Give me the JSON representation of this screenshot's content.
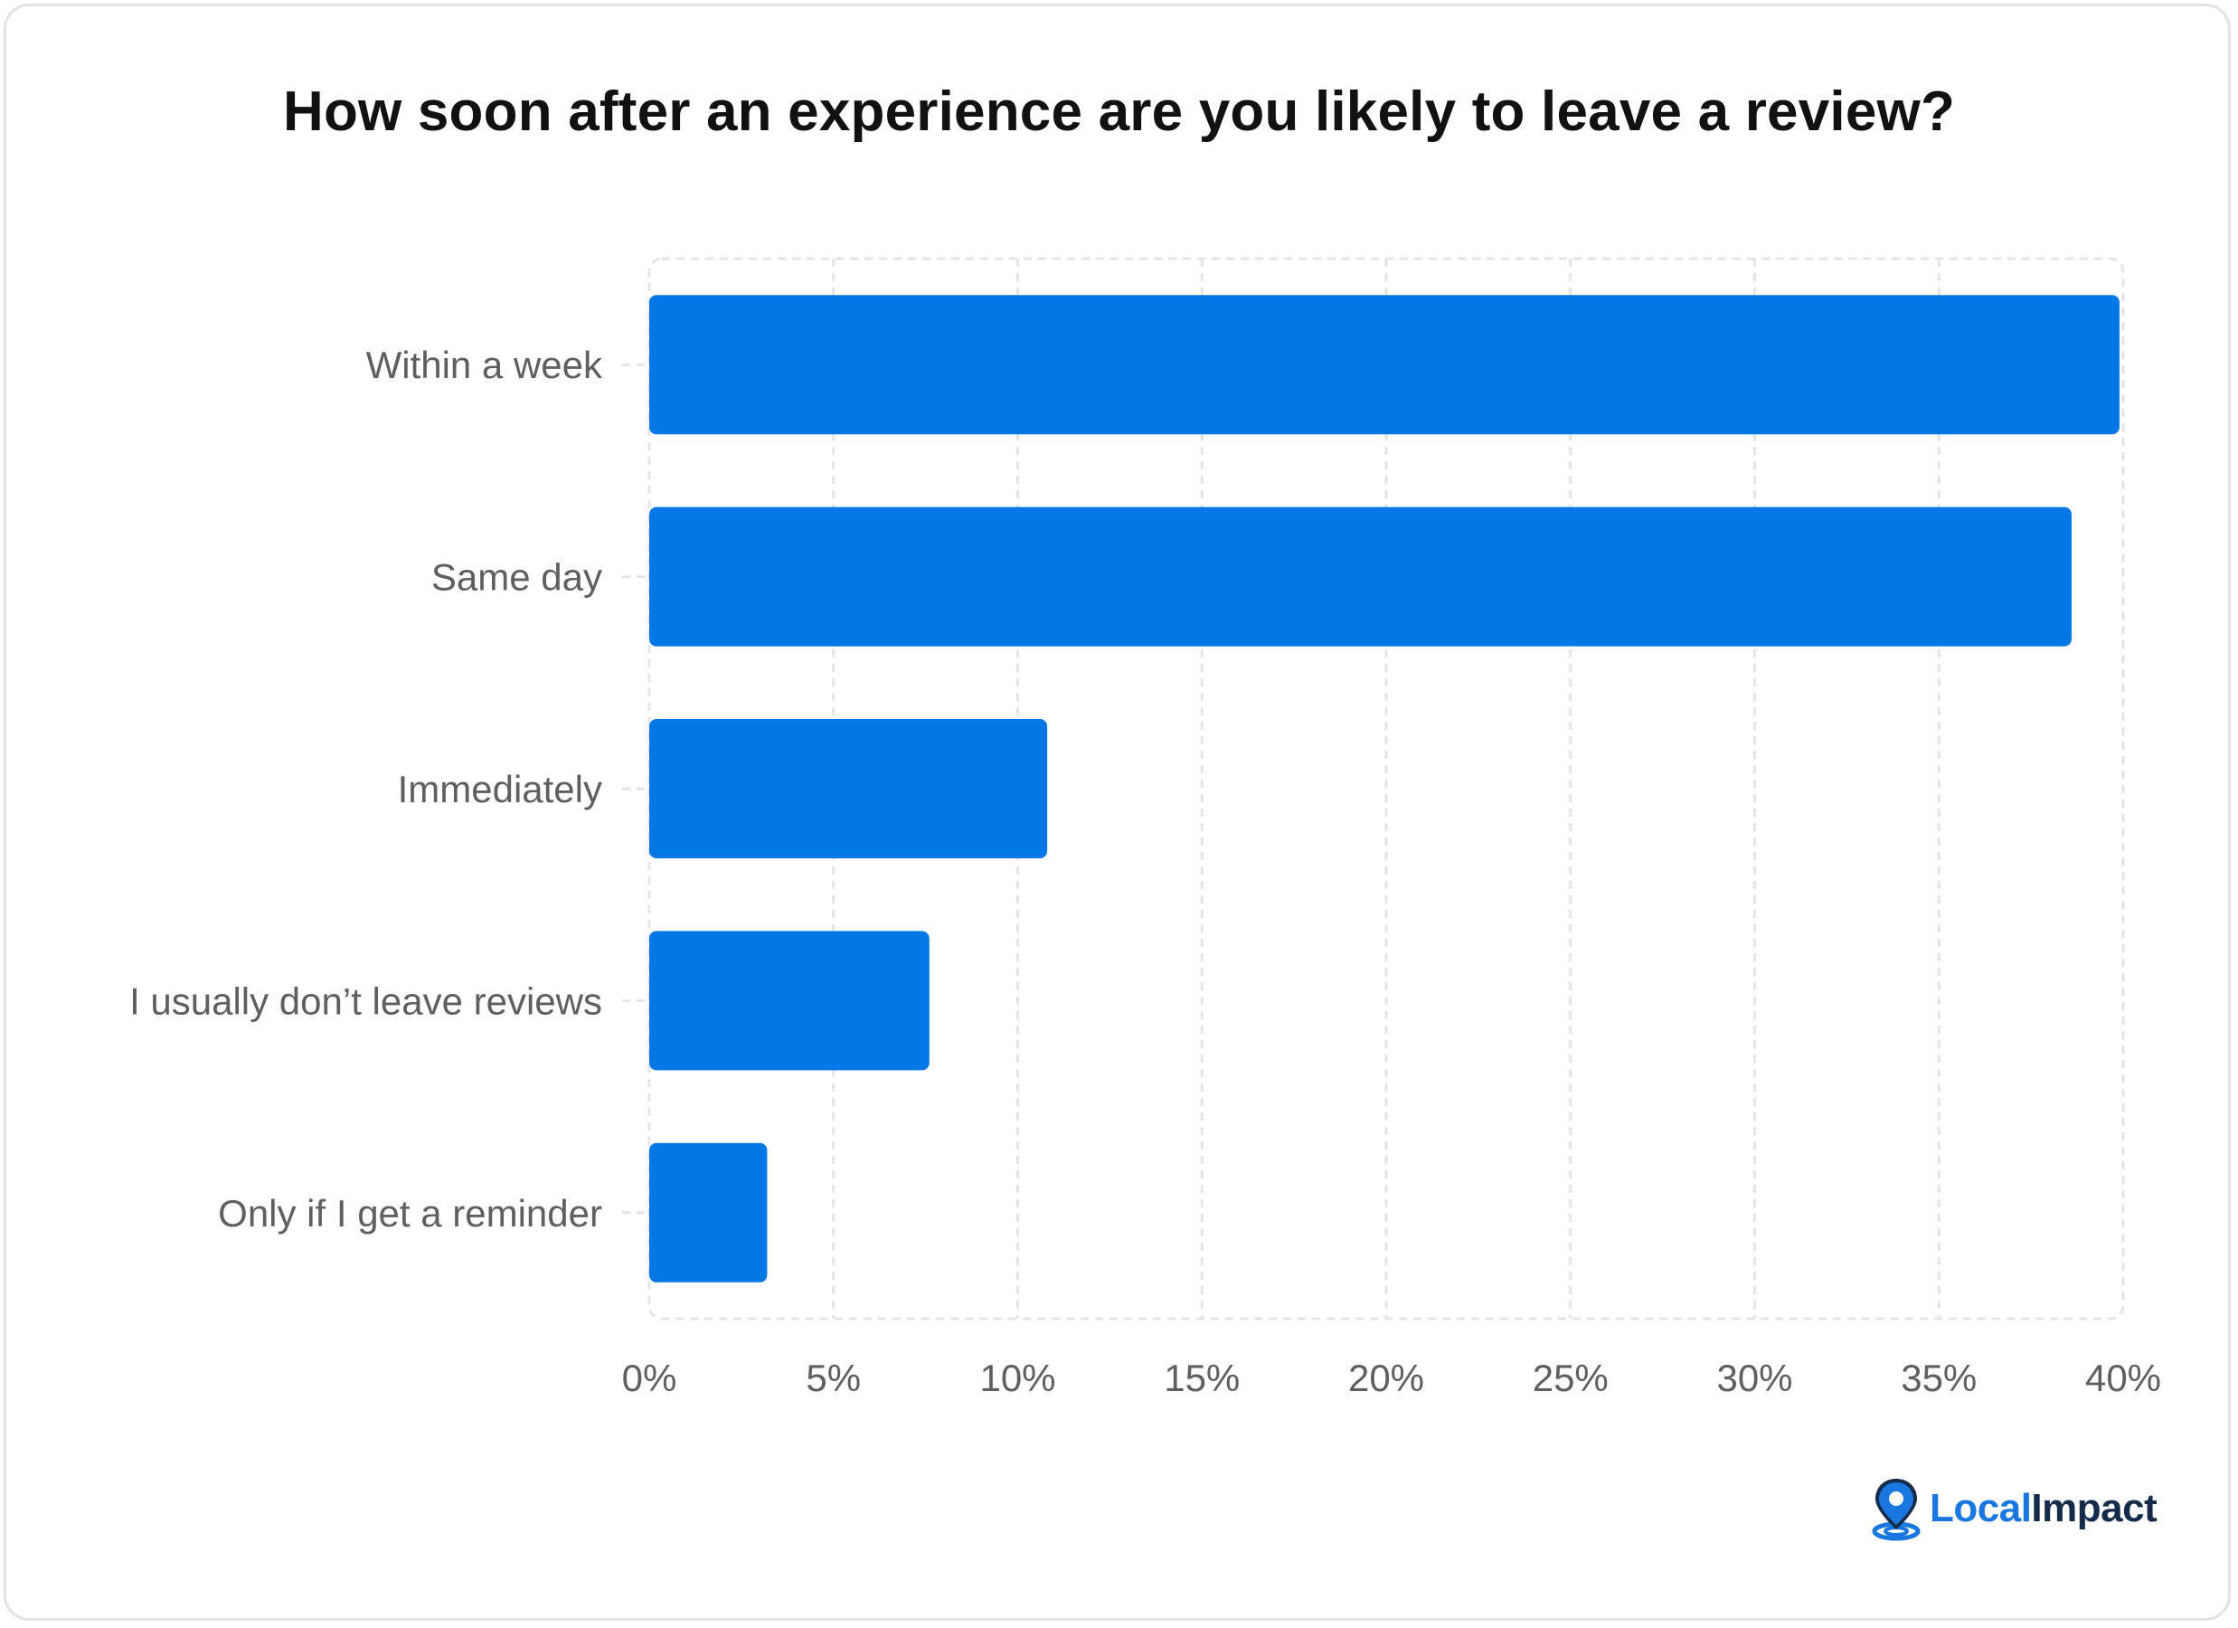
{
  "chart_data": {
    "type": "bar",
    "orientation": "horizontal",
    "title": "How soon after an experience are you likely to leave a review?",
    "categories": [
      "Within a week",
      "Same day",
      "Immediately",
      "I usually don’t leave reviews",
      "Only if I get a reminder"
    ],
    "values": [
      39.9,
      38.6,
      10.8,
      7.6,
      3.2
    ],
    "xlim": [
      0,
      40
    ],
    "xticks": [
      "0%",
      "5%",
      "10%",
      "15%",
      "20%",
      "25%",
      "30%",
      "35%",
      "40%"
    ],
    "xtick_values": [
      0,
      5,
      10,
      15,
      20,
      25,
      30,
      35,
      40
    ],
    "bar_color": "#0277e6",
    "grid": true,
    "grid_style": "dashed"
  },
  "brand": {
    "name_part1": "Local",
    "name_part2": "Impact",
    "icon": "map-pin-icon",
    "color_primary": "#1a77e0",
    "color_dark": "#152b4a"
  }
}
